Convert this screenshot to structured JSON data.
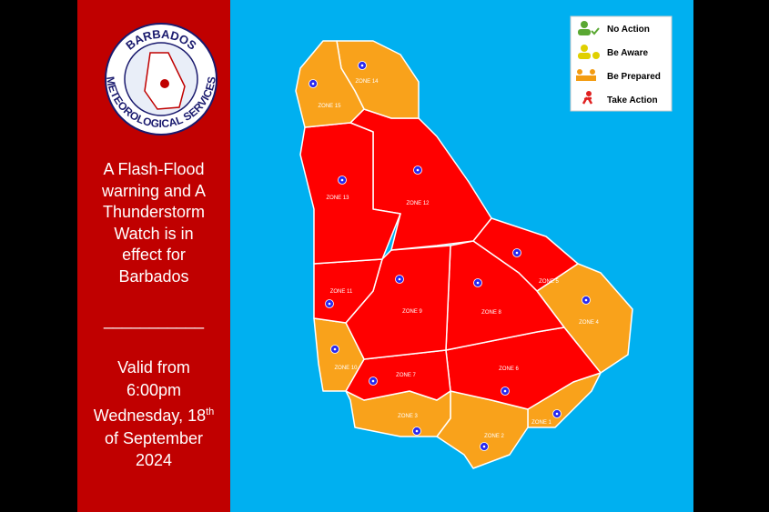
{
  "logo": {
    "top": "BARBADOS",
    "bottom": "METEOROLOGICAL SERVICES"
  },
  "warning": [
    "A Flash-Flood",
    "warning and A",
    "Thunderstorm",
    "Watch is in",
    "effect for",
    "Barbados"
  ],
  "divider": "___________",
  "valid": {
    "line1": "Valid from",
    "time": "6:00pm",
    "day": "Wednesday, 18",
    "ordinal": "th",
    "rest": "of September",
    "year": "2024"
  },
  "legend": [
    "No Action",
    "Be Aware",
    "Be Prepared",
    "Take Action"
  ],
  "zones": [
    "ZONE 1",
    "ZONE 2",
    "ZONE 3",
    "ZONE 4",
    "ZONE 5",
    "ZONE 6",
    "ZONE 7",
    "ZONE 8",
    "ZONE 9",
    "ZONE 10",
    "ZONE 11",
    "ZONE 12",
    "ZONE 13",
    "ZONE 14",
    "ZONE 15"
  ]
}
